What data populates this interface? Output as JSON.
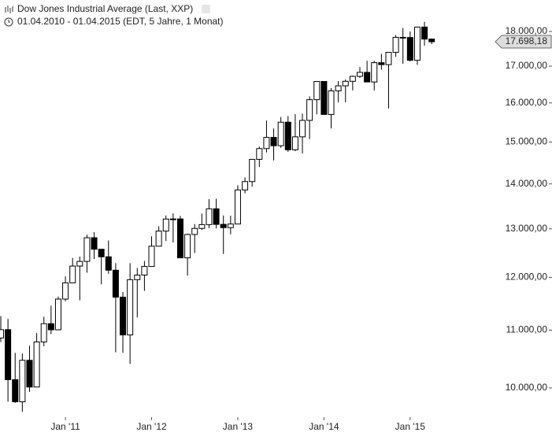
{
  "chart_data": {
    "type": "candlestick",
    "title": "Dow Jones Industrial Average (Last, XXP)",
    "subtitle": "01.04.2010 - 01.04.2015 (EDT, 5 Jahre, 1 Monat)",
    "categories": [
      null,
      null,
      null,
      null,
      null,
      null,
      null,
      null,
      null,
      "Jan '11",
      null,
      null,
      null,
      null,
      null,
      null,
      null,
      null,
      null,
      null,
      null,
      "Jan '12",
      null,
      null,
      null,
      null,
      null,
      null,
      null,
      null,
      null,
      null,
      null,
      "Jan '13",
      null,
      null,
      null,
      null,
      null,
      null,
      null,
      null,
      null,
      null,
      null,
      "Jan '14",
      null,
      null,
      null,
      null,
      null,
      null,
      null,
      null,
      null,
      null,
      null,
      "Jan '15",
      null,
      null,
      null
    ],
    "series": [
      {
        "up_color": "#ffffff",
        "down_color": "#000000",
        "line_color": "#000000",
        "open": [
          10857,
          11009,
          10137,
          9774,
          10466,
          10015,
          10788,
          11118,
          11006,
          11578,
          11892,
          12226,
          12320,
          12811,
          12570,
          12414,
          12143,
          11614,
          10913,
          11955,
          12046,
          12218,
          12633,
          12952,
          13212,
          13214,
          12393,
          12880,
          13009,
          13091,
          13437,
          13096,
          13026,
          13104,
          13861,
          14054,
          14579,
          14840,
          15116,
          14910,
          15500,
          14810,
          15130,
          15546,
          16086,
          16577,
          15699,
          16322,
          16458,
          16581,
          16717,
          16827,
          16563,
          17098,
          17043,
          17391,
          17828,
          17823,
          17165,
          18133,
          17776
        ],
        "high": [
          11258,
          11205,
          10595,
          10584,
          10720,
          10948,
          11245,
          11452,
          11625,
          12020,
          12391,
          12419,
          12876,
          12929,
          12570,
          12754,
          12285,
          11716,
          12284,
          12188,
          12330,
          12841,
          13055,
          13290,
          13338,
          13280,
          12899,
          13103,
          13331,
          13653,
          13662,
          13290,
          13284,
          13969,
          14150,
          14586,
          14888,
          15542,
          15340,
          15634,
          15658,
          15709,
          15721,
          16174,
          16588,
          16588,
          16398,
          16588,
          16631,
          16736,
          16978,
          17152,
          17153,
          17350,
          17395,
          17895,
          18103,
          18000,
          18133,
          18289,
          17794
        ],
        "low": [
          10786,
          9775,
          9757,
          9614,
          9936,
          10015,
          10711,
          10929,
          11006,
          11535,
          11892,
          11555,
          12093,
          12369,
          11863,
          12070,
          10605,
          10597,
          10405,
          11232,
          11735,
          12218,
          12629,
          12742,
          12710,
          12391,
          12035,
          12492,
          12977,
          13015,
          13008,
          12471,
          12883,
          13104,
          13784,
          13937,
          14397,
          14746,
          14551,
          14859,
          14760,
          14777,
          14719,
          15074,
          15703,
          15699,
          15340,
          16015,
          16015,
          16334,
          16674,
          16563,
          16333,
          16902,
          15855,
          17265,
          17068,
          17137,
          17037,
          17585,
          17630
        ],
        "close": [
          11009,
          10137,
          9774,
          10466,
          10015,
          10788,
          11118,
          11006,
          11578,
          11892,
          12226,
          12320,
          12811,
          12570,
          12414,
          12143,
          11614,
          10913,
          11955,
          12046,
          12218,
          12633,
          12952,
          13212,
          13214,
          12393,
          12880,
          13009,
          13091,
          13437,
          13096,
          13026,
          13104,
          13861,
          14054,
          14579,
          14840,
          15116,
          14910,
          15500,
          14810,
          15130,
          15546,
          16086,
          16577,
          15699,
          16322,
          16458,
          16581,
          16717,
          16827,
          16563,
          17098,
          17043,
          17391,
          17828,
          17823,
          17165,
          18133,
          17776,
          17698
        ]
      }
    ],
    "last_price": {
      "value": 17698.18,
      "label": "17.698,18"
    },
    "log_scale": true,
    "ylim": [
      9530,
      18960
    ],
    "yticks": [
      {
        "value": 10000,
        "label": "10.000,00"
      },
      {
        "value": 11000,
        "label": "11.000,00"
      },
      {
        "value": 12000,
        "label": "12.000,00"
      },
      {
        "value": 13000,
        "label": "13.000,00"
      },
      {
        "value": 14000,
        "label": "14.000,00"
      },
      {
        "value": 15000,
        "label": "15.000,00"
      },
      {
        "value": 16000,
        "label": "16.000,00"
      },
      {
        "value": 17000,
        "label": "17.000,00"
      },
      {
        "value": 18000,
        "label": "18.000,00"
      }
    ]
  }
}
